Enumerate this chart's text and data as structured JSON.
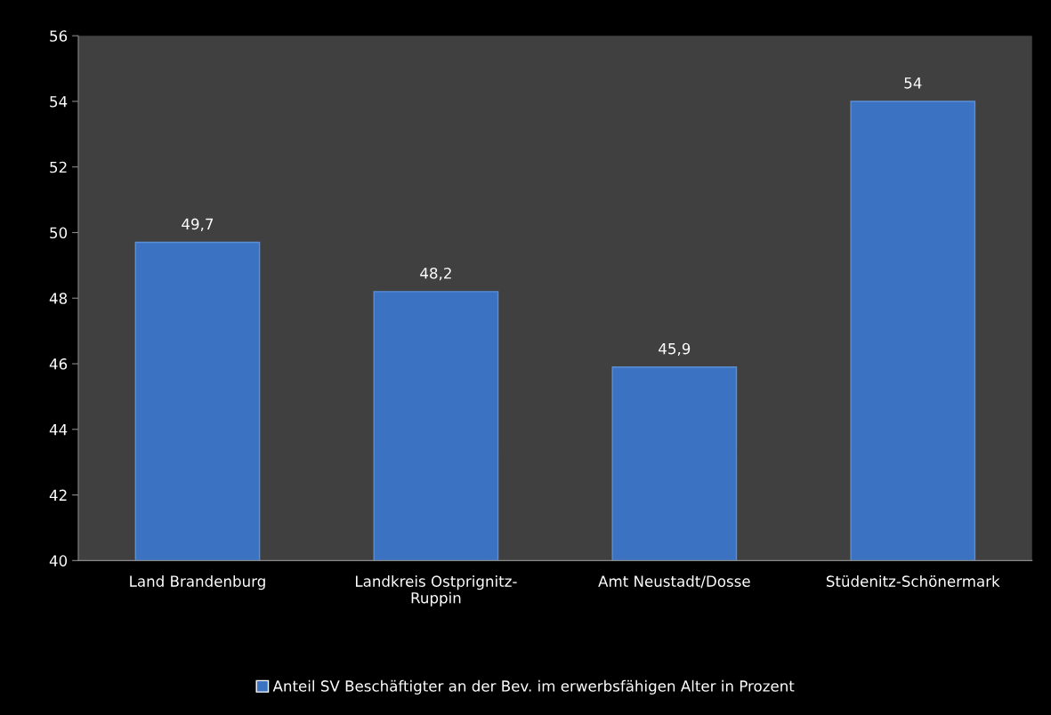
{
  "chart_data": {
    "type": "bar",
    "categories": [
      "Land Brandenburg",
      "Landkreis Ostprignitz-Ruppin",
      "Amt Neustadt/Dosse",
      "Stüdenitz-Schönermark"
    ],
    "series": [
      {
        "name": "Anteil SV Beschäftigter an der Bev. im erwerbsfähigen Alter in Prozent",
        "color": "#3b73c2",
        "values": [
          49.7,
          48.2,
          45.9,
          54
        ],
        "value_labels": [
          "49,7",
          "48,2",
          "45,9",
          "54"
        ]
      }
    ],
    "ylim": [
      40,
      56
    ],
    "yticks": [
      40,
      42,
      44,
      46,
      48,
      50,
      52,
      54,
      56
    ],
    "grid": false,
    "legend": "bottom"
  }
}
